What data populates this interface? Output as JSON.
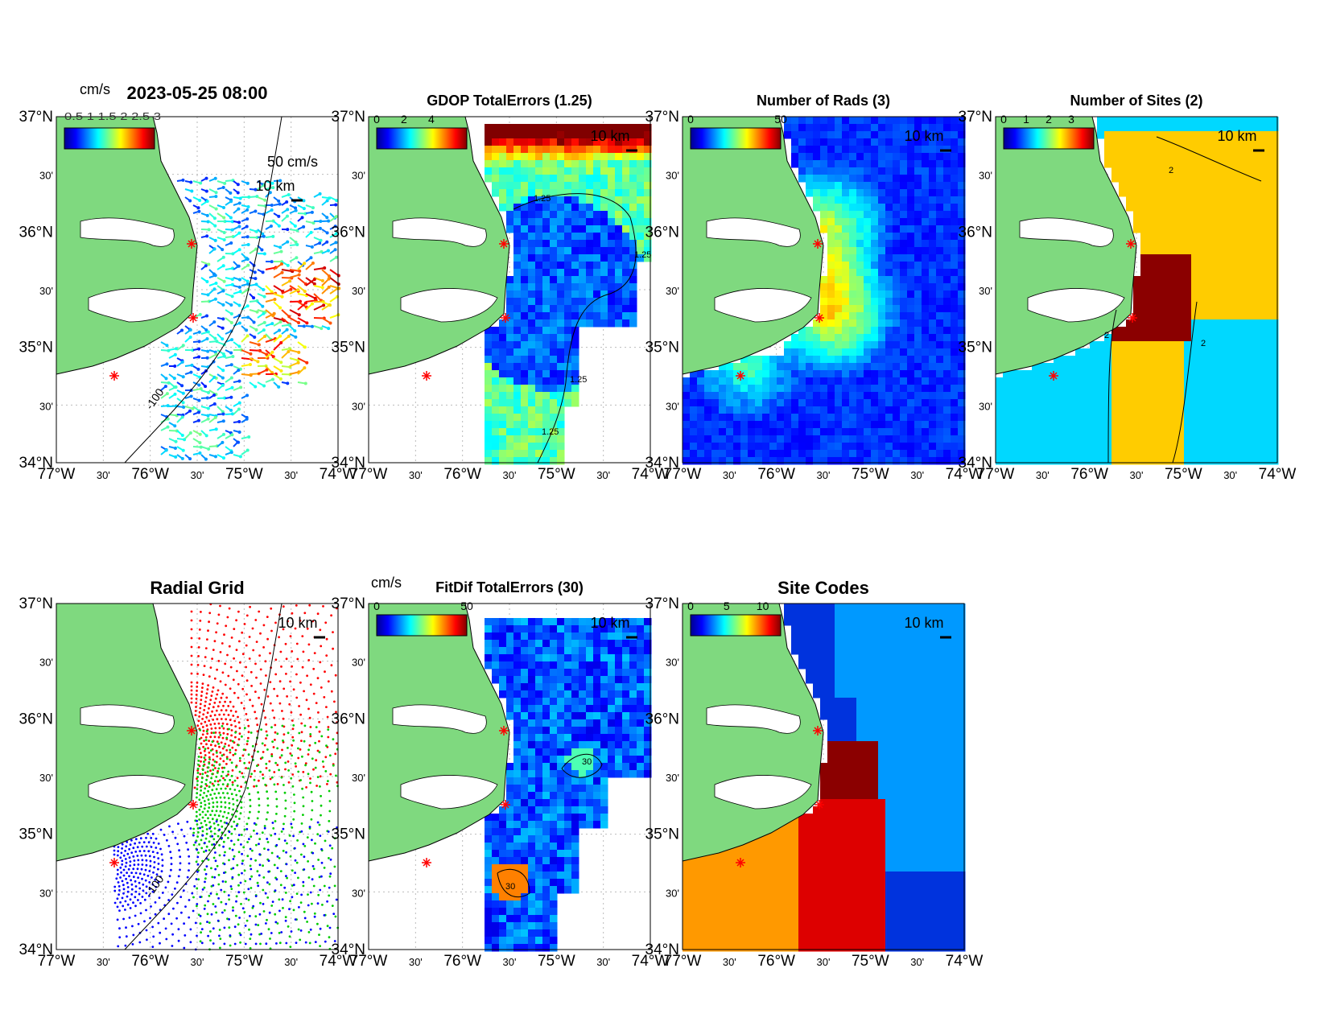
{
  "figure": {
    "lat_labels": [
      "37°N",
      "30'",
      "36°N",
      "30'",
      "35°N",
      "30'",
      "34°N"
    ],
    "lon_labels": [
      "77°W",
      "30'",
      "76°W",
      "30'",
      "75°W",
      "30'",
      "74°W"
    ],
    "scale_label": "10 km",
    "colors": {
      "land": "#7fd97f",
      "site_marker": "#ff0000",
      "contour": "#000000"
    }
  },
  "panels": [
    {
      "id": "totals",
      "title": "2023-05-25 08:00",
      "cbar_units": "cm/s",
      "cbar_ticks": [],
      "overprint": "0.5 1 1.5 2 2.5 3",
      "vector_scale_label": "50 cm/s",
      "contour_label": "-100",
      "legend": {
        "velocity_scale": "50 cm/s"
      }
    },
    {
      "id": "gdop",
      "title": "GDOP TotalErrors (1.25)",
      "cbar_ticks": [
        "0",
        "2",
        "4"
      ],
      "contour_label": "1.25"
    },
    {
      "id": "nrads",
      "title": "Number of Rads (3)",
      "cbar_ticks": [
        "0",
        "50"
      ]
    },
    {
      "id": "nsites",
      "title": "Number of Sites (2)",
      "cbar_ticks": [
        "0",
        "1",
        "2",
        "3"
      ],
      "contour_label": "2"
    },
    {
      "id": "radgrid",
      "title": "Radial Grid",
      "cbar_ticks": [],
      "contour_label": "-100",
      "site_colors": [
        "#ff0000",
        "#00cc00",
        "#0000ff"
      ]
    },
    {
      "id": "fitdif",
      "title": "FitDif TotalErrors (30)",
      "cbar_units": "cm/s",
      "cbar_ticks": [
        "0",
        "50"
      ],
      "contour_label": "30"
    },
    {
      "id": "sitecodes",
      "title": "Site Codes",
      "cbar_ticks": [
        "0",
        "5",
        "10"
      ]
    }
  ]
}
